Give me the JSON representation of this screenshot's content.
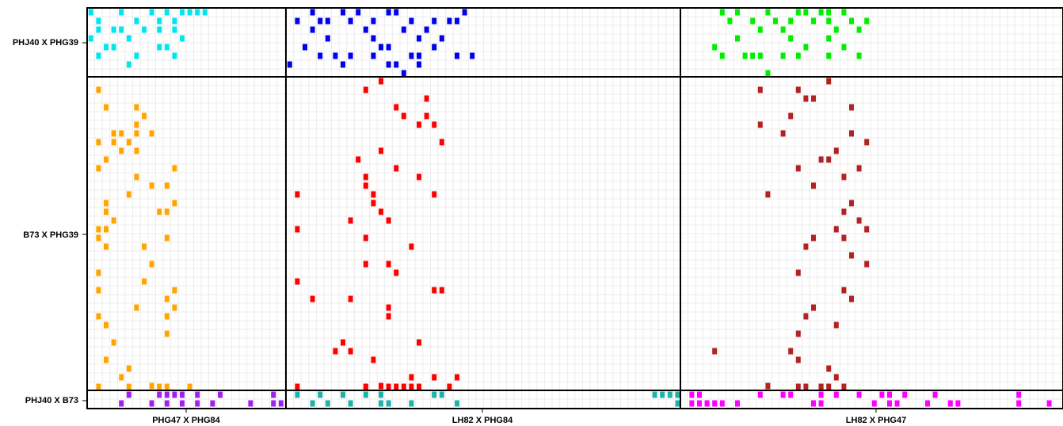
{
  "chart_data": {
    "type": "heatmap",
    "title": "",
    "rows": [
      "PHJ40 X PHG39",
      "B73 X PHG39",
      "PHJ40 X B73"
    ],
    "cols": [
      "PHG47 X PHG84",
      "LH82 X PHG84",
      "LH82 X PHG47"
    ],
    "grid": true,
    "panels": [
      {
        "row": 0,
        "col": 0,
        "color": "#00e5ee",
        "cells": [
          [
            0,
            0
          ],
          [
            4,
            0
          ],
          [
            8,
            0
          ],
          [
            10,
            0
          ],
          [
            12,
            0
          ],
          [
            13,
            0
          ],
          [
            14,
            0
          ],
          [
            15,
            0
          ],
          [
            1,
            1
          ],
          [
            6,
            1
          ],
          [
            9,
            1
          ],
          [
            11,
            1
          ],
          [
            1,
            2
          ],
          [
            3,
            2
          ],
          [
            4,
            2
          ],
          [
            7,
            2
          ],
          [
            9,
            2
          ],
          [
            11,
            2
          ],
          [
            0,
            3
          ],
          [
            5,
            3
          ],
          [
            12,
            3
          ],
          [
            2,
            4
          ],
          [
            3,
            4
          ],
          [
            9,
            4
          ],
          [
            10,
            4
          ],
          [
            1,
            5
          ],
          [
            6,
            5
          ],
          [
            11,
            5
          ],
          [
            5,
            6
          ]
        ]
      },
      {
        "row": 0,
        "col": 1,
        "color": "#0000ee",
        "cells": [
          [
            3,
            0
          ],
          [
            7,
            0
          ],
          [
            9,
            0
          ],
          [
            13,
            0
          ],
          [
            14,
            0
          ],
          [
            23,
            0
          ],
          [
            1,
            1
          ],
          [
            4,
            1
          ],
          [
            5,
            1
          ],
          [
            8,
            1
          ],
          [
            11,
            1
          ],
          [
            16,
            1
          ],
          [
            19,
            1
          ],
          [
            21,
            1
          ],
          [
            22,
            1
          ],
          [
            3,
            2
          ],
          [
            10,
            2
          ],
          [
            15,
            2
          ],
          [
            18,
            2
          ],
          [
            5,
            3
          ],
          [
            11,
            3
          ],
          [
            17,
            3
          ],
          [
            20,
            3
          ],
          [
            2,
            4
          ],
          [
            12,
            4
          ],
          [
            13,
            4
          ],
          [
            19,
            4
          ],
          [
            4,
            5
          ],
          [
            6,
            5
          ],
          [
            8,
            5
          ],
          [
            11,
            5
          ],
          [
            16,
            5
          ],
          [
            17,
            5
          ],
          [
            22,
            5
          ],
          [
            24,
            5
          ],
          [
            0,
            6
          ],
          [
            7,
            6
          ],
          [
            13,
            6
          ],
          [
            14,
            6
          ],
          [
            17,
            6
          ],
          [
            15,
            7
          ]
        ]
      },
      {
        "row": 0,
        "col": 2,
        "color": "#00ee00",
        "cells": [
          [
            5,
            0
          ],
          [
            7,
            0
          ],
          [
            11,
            0
          ],
          [
            15,
            0
          ],
          [
            16,
            0
          ],
          [
            18,
            0
          ],
          [
            19,
            0
          ],
          [
            21,
            0
          ],
          [
            6,
            1
          ],
          [
            9,
            1
          ],
          [
            12,
            1
          ],
          [
            14,
            1
          ],
          [
            17,
            1
          ],
          [
            19,
            1
          ],
          [
            22,
            1
          ],
          [
            24,
            1
          ],
          [
            10,
            2
          ],
          [
            13,
            2
          ],
          [
            20,
            2
          ],
          [
            23,
            2
          ],
          [
            7,
            3
          ],
          [
            14,
            3
          ],
          [
            19,
            3
          ],
          [
            4,
            4
          ],
          [
            16,
            4
          ],
          [
            21,
            4
          ],
          [
            5,
            5
          ],
          [
            8,
            5
          ],
          [
            9,
            5
          ],
          [
            10,
            5
          ],
          [
            13,
            5
          ],
          [
            15,
            5
          ],
          [
            19,
            5
          ],
          [
            23,
            5
          ],
          [
            11,
            7
          ]
        ]
      },
      {
        "row": 1,
        "col": 0,
        "color": "#ffa500",
        "cells": [
          [
            1,
            1
          ],
          [
            2,
            3
          ],
          [
            6,
            3
          ],
          [
            7,
            4
          ],
          [
            6,
            5
          ],
          [
            3,
            6
          ],
          [
            4,
            6
          ],
          [
            6,
            6
          ],
          [
            8,
            6
          ],
          [
            1,
            7
          ],
          [
            3,
            7
          ],
          [
            5,
            7
          ],
          [
            4,
            8
          ],
          [
            6,
            8
          ],
          [
            2,
            9
          ],
          [
            1,
            10
          ],
          [
            11,
            10
          ],
          [
            6,
            11
          ],
          [
            8,
            12
          ],
          [
            10,
            12
          ],
          [
            5,
            13
          ],
          [
            2,
            14
          ],
          [
            11,
            14
          ],
          [
            9,
            15
          ],
          [
            2,
            15
          ],
          [
            10,
            15
          ],
          [
            3,
            16
          ],
          [
            1,
            17
          ],
          [
            2,
            17
          ],
          [
            1,
            18
          ],
          [
            10,
            18
          ],
          [
            7,
            19
          ],
          [
            2,
            19
          ],
          [
            8,
            21
          ],
          [
            1,
            22
          ],
          [
            7,
            23
          ],
          [
            1,
            24
          ],
          [
            11,
            24
          ],
          [
            10,
            25
          ],
          [
            11,
            26
          ],
          [
            6,
            26
          ],
          [
            1,
            27
          ],
          [
            10,
            27
          ],
          [
            2,
            28
          ],
          [
            10,
            29
          ],
          [
            3,
            30
          ],
          [
            2,
            32
          ],
          [
            5,
            33
          ],
          [
            4,
            34
          ],
          [
            8,
            35
          ],
          [
            1,
            36
          ],
          [
            9,
            37
          ],
          [
            10,
            38
          ],
          [
            5,
            39
          ],
          [
            13,
            39
          ]
        ]
      },
      {
        "row": 1,
        "col": 1,
        "color": "#ff0000",
        "cells": [
          [
            12,
            0
          ],
          [
            10,
            1
          ],
          [
            14,
            3
          ],
          [
            18,
            2
          ],
          [
            15,
            4
          ],
          [
            18,
            4
          ],
          [
            19,
            5
          ],
          [
            17,
            5
          ],
          [
            20,
            7
          ],
          [
            12,
            8
          ],
          [
            9,
            9
          ],
          [
            14,
            10
          ],
          [
            10,
            11
          ],
          [
            17,
            11
          ],
          [
            10,
            12
          ],
          [
            1,
            13
          ],
          [
            11,
            13
          ],
          [
            19,
            13
          ],
          [
            11,
            14
          ],
          [
            12,
            15
          ],
          [
            13,
            16
          ],
          [
            8,
            16
          ],
          [
            1,
            17
          ],
          [
            10,
            18
          ],
          [
            16,
            19
          ],
          [
            10,
            21
          ],
          [
            13,
            21
          ],
          [
            14,
            22
          ],
          [
            1,
            23
          ],
          [
            19,
            24
          ],
          [
            3,
            25
          ],
          [
            8,
            25
          ],
          [
            20,
            24
          ],
          [
            13,
            26
          ],
          [
            13,
            27
          ],
          [
            7,
            30
          ],
          [
            17,
            30
          ],
          [
            6,
            31
          ],
          [
            8,
            31
          ],
          [
            11,
            32
          ],
          [
            16,
            34
          ],
          [
            19,
            34
          ],
          [
            22,
            34
          ],
          [
            12,
            35
          ],
          [
            10,
            36
          ],
          [
            21,
            36
          ],
          [
            10,
            37
          ],
          [
            15,
            37
          ],
          [
            17,
            38
          ],
          [
            13,
            39
          ],
          [
            1,
            39
          ],
          [
            16,
            40
          ],
          [
            14,
            41
          ]
        ]
      },
      {
        "row": 1,
        "col": 2,
        "color": "#b22222",
        "cells": [
          [
            19,
            0
          ],
          [
            10,
            1
          ],
          [
            15,
            1
          ],
          [
            16,
            2
          ],
          [
            17,
            2
          ],
          [
            22,
            3
          ],
          [
            10,
            5
          ],
          [
            14,
            4
          ],
          [
            13,
            6
          ],
          [
            22,
            6
          ],
          [
            24,
            7
          ],
          [
            20,
            8
          ],
          [
            19,
            9
          ],
          [
            15,
            10
          ],
          [
            18,
            9
          ],
          [
            23,
            10
          ],
          [
            21,
            11
          ],
          [
            17,
            12
          ],
          [
            11,
            13
          ],
          [
            22,
            14
          ],
          [
            21,
            15
          ],
          [
            23,
            16
          ],
          [
            20,
            17
          ],
          [
            24,
            17
          ],
          [
            17,
            18
          ],
          [
            21,
            18
          ],
          [
            16,
            19
          ],
          [
            22,
            20
          ],
          [
            24,
            21
          ],
          [
            15,
            22
          ],
          [
            21,
            24
          ],
          [
            22,
            25
          ],
          [
            17,
            26
          ],
          [
            16,
            27
          ],
          [
            20,
            28
          ],
          [
            15,
            29
          ],
          [
            4,
            31
          ],
          [
            14,
            31
          ],
          [
            15,
            32
          ],
          [
            19,
            33
          ],
          [
            20,
            34
          ],
          [
            11,
            35
          ],
          [
            16,
            37
          ],
          [
            18,
            38
          ],
          [
            19,
            40
          ],
          [
            15,
            42
          ],
          [
            21,
            42
          ],
          [
            18,
            43
          ]
        ]
      },
      {
        "row": 2,
        "col": 0,
        "color": "#a020f0",
        "cells": [
          [
            5,
            0
          ],
          [
            9,
            0
          ],
          [
            10,
            0
          ],
          [
            11,
            0
          ],
          [
            12,
            0
          ],
          [
            14,
            0
          ],
          [
            17,
            0
          ],
          [
            24,
            0
          ],
          [
            4,
            1
          ],
          [
            8,
            1
          ],
          [
            10,
            1
          ],
          [
            12,
            1
          ],
          [
            14,
            1
          ],
          [
            16,
            1
          ],
          [
            21,
            1
          ],
          [
            24,
            1
          ],
          [
            25,
            1
          ]
        ]
      },
      {
        "row": 2,
        "col": 1,
        "color": "#1fb2aa",
        "cells": [
          [
            1,
            0
          ],
          [
            4,
            0
          ],
          [
            7,
            0
          ],
          [
            10,
            0
          ],
          [
            12,
            0
          ],
          [
            19,
            0
          ],
          [
            20,
            0
          ],
          [
            48,
            0
          ],
          [
            49,
            0
          ],
          [
            50,
            0
          ],
          [
            51,
            0
          ],
          [
            52,
            0
          ],
          [
            53,
            0
          ],
          [
            3,
            1
          ],
          [
            5,
            1
          ],
          [
            8,
            1
          ],
          [
            12,
            1
          ],
          [
            13,
            1
          ],
          [
            16,
            1
          ],
          [
            22,
            1
          ],
          [
            52,
            1
          ]
        ]
      },
      {
        "row": 2,
        "col": 2,
        "color": "#ff00ff",
        "cells": [
          [
            1,
            0
          ],
          [
            2,
            0
          ],
          [
            10,
            0
          ],
          [
            13,
            0
          ],
          [
            14,
            0
          ],
          [
            18,
            0
          ],
          [
            20,
            0
          ],
          [
            23,
            0
          ],
          [
            26,
            0
          ],
          [
            27,
            0
          ],
          [
            29,
            0
          ],
          [
            33,
            0
          ],
          [
            44,
            0
          ],
          [
            1,
            1
          ],
          [
            2,
            1
          ],
          [
            3,
            1
          ],
          [
            4,
            1
          ],
          [
            5,
            1
          ],
          [
            7,
            1
          ],
          [
            17,
            1
          ],
          [
            18,
            1
          ],
          [
            25,
            1
          ],
          [
            27,
            1
          ],
          [
            28,
            1
          ],
          [
            32,
            1
          ],
          [
            35,
            1
          ],
          [
            36,
            1
          ],
          [
            44,
            1
          ],
          [
            48,
            1
          ]
        ]
      }
    ]
  }
}
